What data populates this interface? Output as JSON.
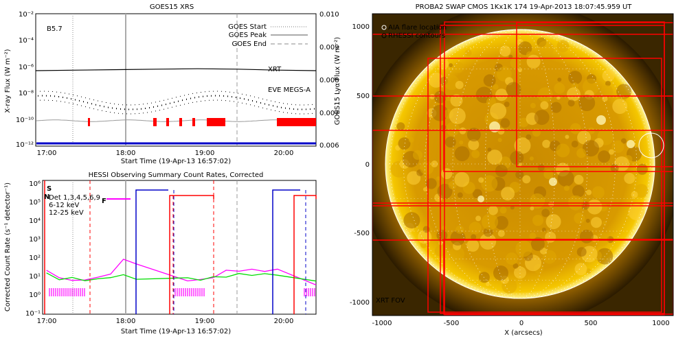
{
  "goes": {
    "title": "GOES15 XRS",
    "class_label": "B5.7",
    "ylabel_left": "X-ray Flux (W m⁻²)",
    "ylabel_right": "GOES15 Lyα Flux (W m⁻²)",
    "xlabel": "Start Time (19-Apr-13 16:57:02)",
    "x_ticks": [
      "17:00",
      "18:00",
      "19:00",
      "20:00"
    ],
    "y_ticks_left": [
      "10⁻²",
      "10⁻⁴",
      "10⁻⁶",
      "10⁻⁸",
      "10⁻¹⁰",
      "10⁻¹²"
    ],
    "y_ticks_right": [
      "0.010",
      "0.009",
      "0.008",
      "0.007",
      "0.006"
    ],
    "legend": {
      "start": "GOES Start",
      "peak": "GOES Peak",
      "end": "GOES End"
    },
    "series_labels": {
      "xrt": "XRT",
      "eve": "EVE MEGS-A"
    },
    "colors": {
      "xrt": "#ff0000",
      "eve": "#0000c8",
      "lya": "#999999",
      "flux": "#000000"
    }
  },
  "hessi": {
    "title": "HESSI Observing Summary Count Rates, Corrected",
    "ylabel": "Corrected Count Rate (s⁻¹ detector⁻¹)",
    "xlabel": "Start Time (19-Apr-13 16:57:02)",
    "x_ticks": [
      "17:00",
      "18:00",
      "19:00",
      "20:00"
    ],
    "y_ticks": [
      "10⁶",
      "10⁵",
      "10⁴",
      "10³",
      "10²",
      "10¹",
      "10⁰",
      "10⁻¹"
    ],
    "legend": {
      "det": "Det 1,3,4,5,6,9",
      "low": "6-12 keV",
      "mid": "12-25 keV"
    },
    "flags": {
      "s": "S",
      "n": "N",
      "f": "F"
    },
    "colors": {
      "low": "#ff00ff",
      "mid": "#00dd00",
      "saa": "#0000c8",
      "night": "#ff0000"
    }
  },
  "swap": {
    "title": "PROBA2 SWAP CMOS 1Kx1K 174 19-Apr-2013 18:07:45.959 UT",
    "xlabel": "X (arcsecs)",
    "x_ticks": [
      "-1000",
      "-500",
      "0",
      "500",
      "1000"
    ],
    "y_ticks": [
      "1000",
      "500",
      "0",
      "-500",
      "-1000"
    ],
    "legend_aia": "AIA flare location",
    "legend_rhessi": "RHESSI contours",
    "fov_label": "XRT FOV",
    "colors": {
      "fov": "#ff0000",
      "limb": "#ffffff",
      "sun": "#f0a800"
    }
  },
  "chart_data": [
    {
      "type": "line",
      "title": "GOES15 XRS",
      "xlabel": "Start Time (19-Apr-13 16:57:02)",
      "ylabel": "X-ray Flux (W m⁻²)",
      "xlim": [
        "16:57",
        "20:30"
      ],
      "ylim": [
        1e-12,
        0.01
      ],
      "yscale": "log",
      "series": [
        {
          "name": "XRT",
          "x": [
            "16:57",
            "17:30",
            "18:00",
            "18:30",
            "19:00",
            "19:30",
            "20:00",
            "20:30"
          ],
          "values": [
            5e-07,
            5.5e-07,
            6e-07,
            6.5e-07,
            7e-07,
            6.5e-07,
            5.5e-07,
            5e-07
          ]
        }
      ],
      "goes_start": "17:26",
      "goes_peak": "18:05",
      "goes_end": "19:33"
    },
    {
      "type": "line",
      "title": "HESSI Observing Summary Count Rates, Corrected",
      "xlabel": "Start Time (19-Apr-13 16:57:02)",
      "ylabel": "Corrected Count Rate (s⁻¹ detector⁻¹)",
      "xlim": [
        "16:57",
        "20:30"
      ],
      "ylim": [
        0.1,
        1000000.0
      ],
      "yscale": "log",
      "series": [
        {
          "name": "6-12 keV",
          "x": [
            "17:00",
            "17:10",
            "17:20",
            "17:30",
            "17:40",
            "17:50",
            "18:00",
            "18:10",
            "18:50",
            "19:00",
            "19:10",
            "19:20",
            "19:30",
            "19:40",
            "19:50",
            "20:00",
            "20:30"
          ],
          "values": [
            20,
            8,
            6,
            6,
            9,
            12,
            80,
            40,
            6,
            6,
            9,
            18,
            20,
            20,
            20,
            20,
            4
          ]
        },
        {
          "name": "12-25 keV",
          "x": [
            "17:00",
            "17:10",
            "17:20",
            "17:30",
            "17:40",
            "17:50",
            "18:00",
            "18:10",
            "18:50",
            "19:00",
            "19:10",
            "19:20",
            "19:30",
            "19:40",
            "19:50",
            "20:00",
            "20:30"
          ],
          "values": [
            12,
            8,
            7,
            7,
            6,
            10,
            10,
            8,
            7,
            7,
            8,
            10,
            12,
            12,
            12,
            12,
            5
          ]
        }
      ]
    },
    {
      "type": "scatter",
      "title": "PROBA2 SWAP CMOS 1Kx1K 174 19-Apr-2013 18:07:45.959 UT",
      "xlabel": "X (arcsecs)",
      "xlim": [
        -1150,
        1100
      ],
      "ylim": [
        -1150,
        1100
      ],
      "aia_flare_location": [
        950,
        130
      ]
    }
  ]
}
